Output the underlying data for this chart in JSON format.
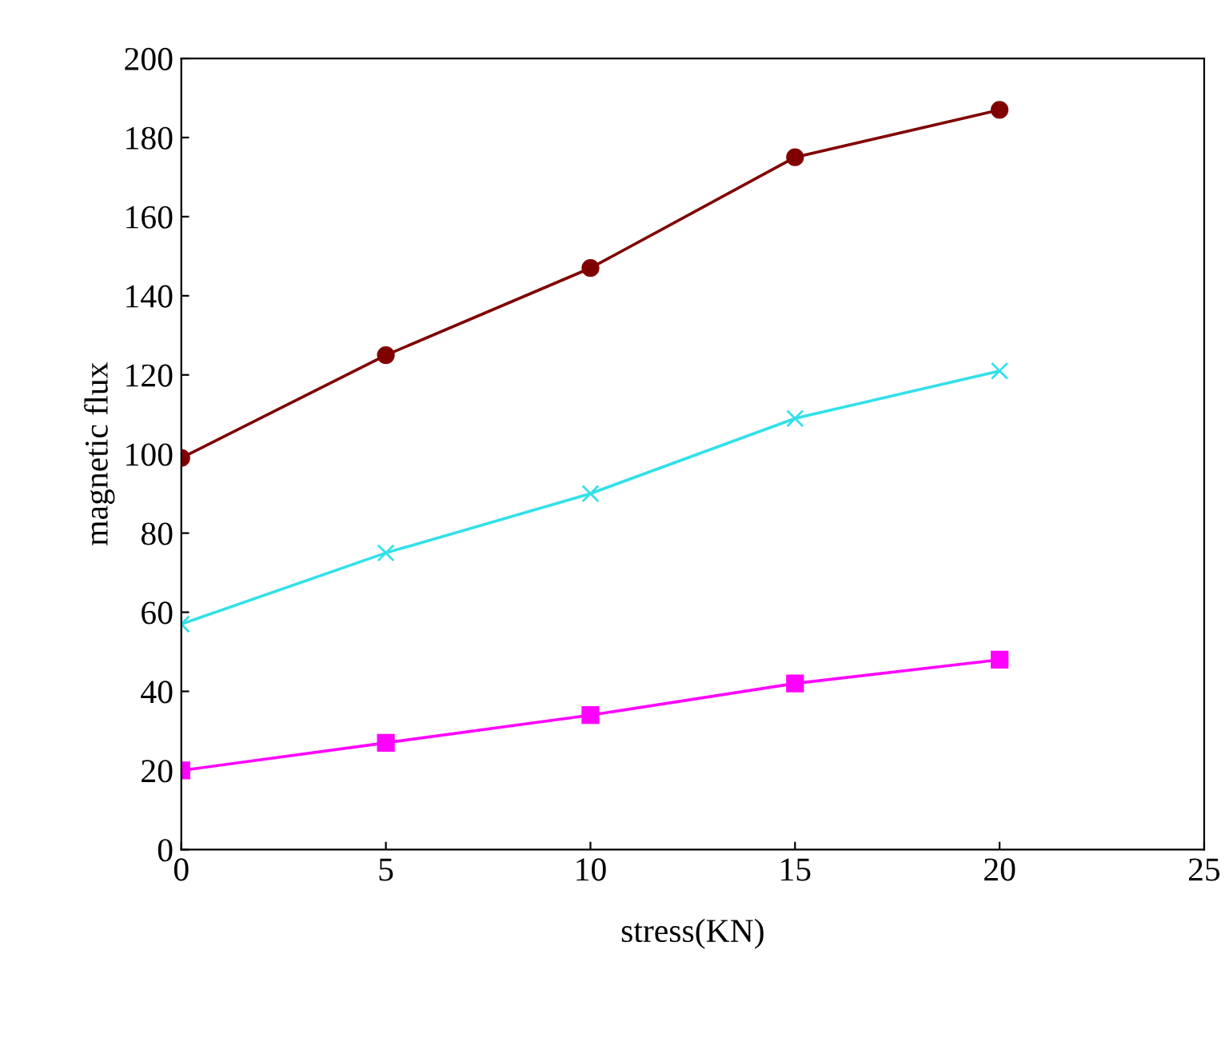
{
  "chart_data": {
    "type": "line",
    "xlabel": "stress(KN)",
    "ylabel": "magnetic flux",
    "x": [
      0,
      5,
      10,
      15,
      20
    ],
    "xlim": [
      0,
      25
    ],
    "xticks": [
      0,
      5,
      10,
      15,
      20,
      25
    ],
    "ylim": [
      0,
      200
    ],
    "yticks": [
      0,
      20,
      40,
      60,
      80,
      100,
      120,
      140,
      160,
      180,
      200
    ],
    "grid": false,
    "legend": false,
    "series": [
      {
        "color": "#800000",
        "marker": "circle",
        "values": [
          99,
          125,
          147,
          175,
          187
        ]
      },
      {
        "color": "#33e0e8",
        "marker": "cross",
        "values": [
          57,
          75,
          90,
          109,
          121
        ]
      },
      {
        "color": "#ff00ff",
        "marker": "square",
        "values": [
          20,
          27,
          34,
          42,
          48
        ]
      }
    ]
  }
}
